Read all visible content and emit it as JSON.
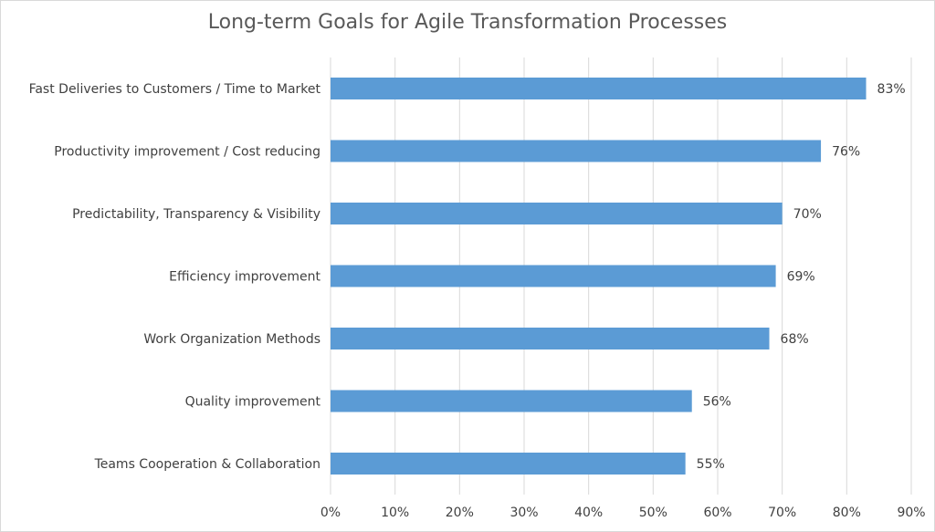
{
  "chart_data": {
    "type": "bar",
    "orientation": "horizontal",
    "title": "Long-term Goals for Agile Transformation Processes",
    "categories": [
      "Fast Deliveries to Customers / Time to Market",
      "Productivity improvement / Cost reducing",
      "Predictability, Transparency & Visibility",
      "Efficiency improvement",
      "Work Organization Methods",
      "Quality improvement",
      "Teams Cooperation & Collaboration"
    ],
    "values": [
      83,
      76,
      70,
      69,
      68,
      56,
      55
    ],
    "value_labels": [
      "83%",
      "76%",
      "70%",
      "69%",
      "68%",
      "56%",
      "55%"
    ],
    "xlim": [
      0,
      90
    ],
    "x_ticks": [
      "0%",
      "10%",
      "20%",
      "30%",
      "40%",
      "50%",
      "60%",
      "70%",
      "80%",
      "90%"
    ],
    "grid": true,
    "legend": "none",
    "bar_color": "#5b9bd5",
    "grid_color": "#d9d9d9"
  }
}
